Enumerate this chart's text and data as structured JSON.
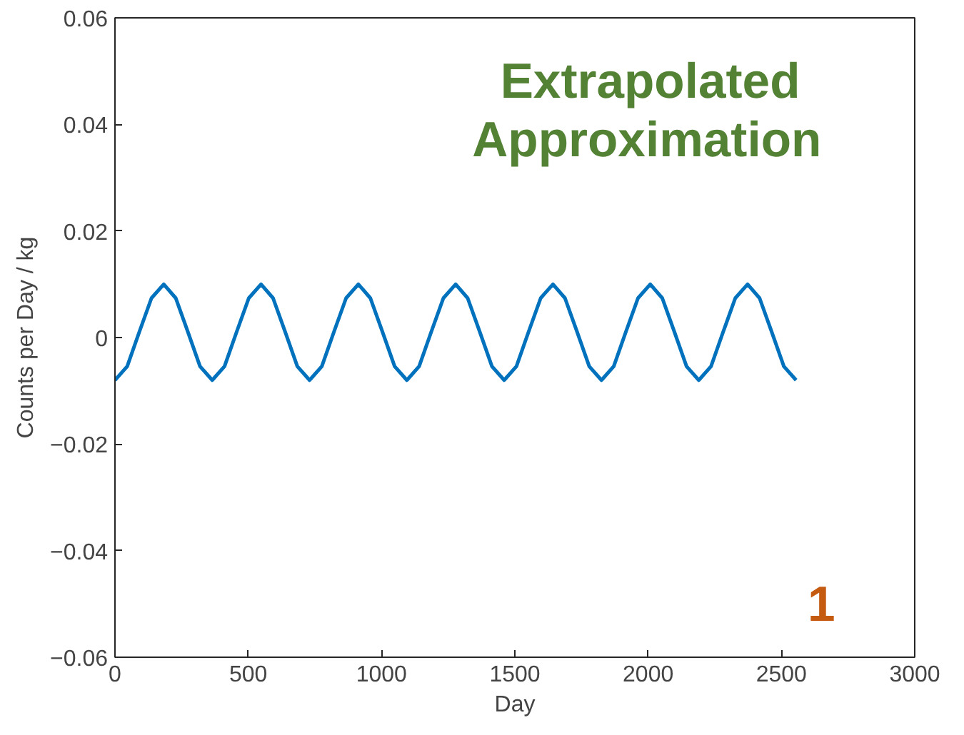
{
  "chart_data": {
    "type": "line",
    "xlabel": "Day",
    "ylabel": "Counts per Day / kg",
    "annotations": [
      "Extrapolated Approximation",
      "1"
    ],
    "xlim": [
      0,
      3000
    ],
    "xticks": [
      0,
      500,
      1000,
      1500,
      2000,
      2500,
      3000
    ],
    "ylim": [
      -0.06,
      0.06
    ],
    "yticks": [
      -0.06,
      -0.04,
      -0.02,
      0,
      0.02,
      0.04,
      0.06
    ],
    "grid": false,
    "marker": "none",
    "line_style": "solid",
    "series": [
      {
        "color": "#0072bd",
        "x": [
          0,
          46,
          91,
          137,
          183,
          228,
          274,
          319,
          365,
          411,
          456,
          502,
          548,
          593,
          639,
          684,
          730,
          776,
          821,
          867,
          913,
          958,
          1004,
          1049,
          1095,
          1141,
          1186,
          1232,
          1278,
          1323,
          1369,
          1414,
          1460,
          1506,
          1551,
          1597,
          1643,
          1688,
          1734,
          1779,
          1825,
          1871,
          1916,
          1962,
          2008,
          2053,
          2099,
          2144,
          2190,
          2236,
          2281,
          2327,
          2373,
          2418,
          2464,
          2509,
          2555
        ],
        "values": [
          -0.008,
          -0.0054,
          0.001,
          0.0074,
          0.01,
          0.0074,
          0.001,
          -0.0054,
          -0.008,
          -0.0054,
          0.001,
          0.0074,
          0.01,
          0.0074,
          0.001,
          -0.0054,
          -0.008,
          -0.0054,
          0.001,
          0.0074,
          0.01,
          0.0074,
          0.001,
          -0.0054,
          -0.008,
          -0.0054,
          0.001,
          0.0074,
          0.01,
          0.0074,
          0.001,
          -0.0054,
          -0.008,
          -0.0054,
          0.001,
          0.0074,
          0.01,
          0.0074,
          0.001,
          -0.0054,
          -0.008,
          -0.0054,
          0.001,
          0.0074,
          0.01,
          0.0074,
          0.001,
          -0.0054,
          -0.008,
          -0.0054,
          0.001,
          0.0074,
          0.01,
          0.0074,
          0.001,
          -0.0054,
          -0.008
        ]
      }
    ]
  }
}
